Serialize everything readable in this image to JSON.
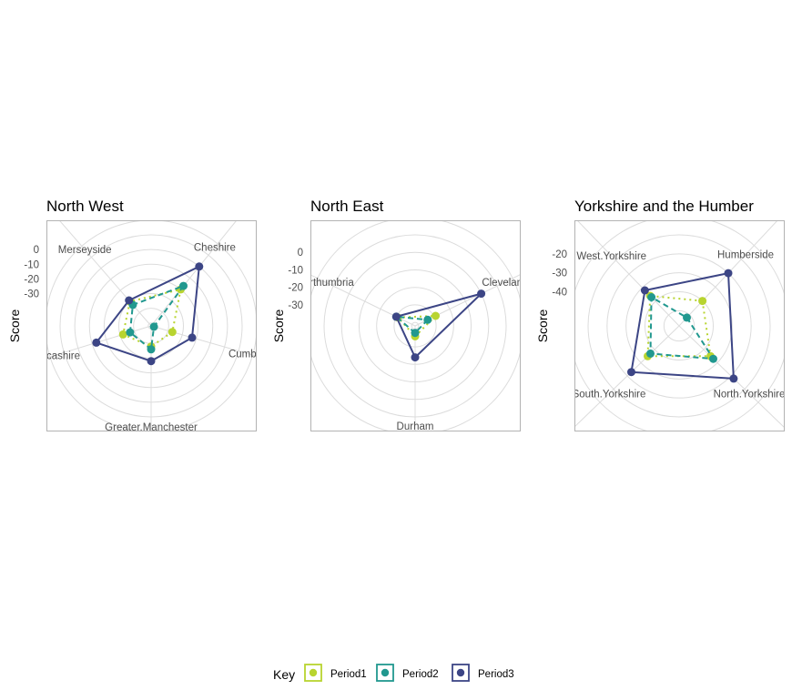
{
  "chart_data": [
    {
      "type": "radar",
      "title": "North West",
      "ylabel": "Score",
      "axes": [
        "Cheshire",
        "Cumbria",
        "Greater.Manchester",
        "Lancashire",
        "Merseyside"
      ],
      "radial_ticks": [
        "0",
        "-10",
        "-20",
        "-30"
      ],
      "series": [
        {
          "name": "Period1",
          "values": [
            -20,
            -37,
            -38,
            -32,
            -30
          ]
        },
        {
          "name": "Period2",
          "values": [
            -17,
            -50,
            -36,
            -37,
            -33
          ]
        },
        {
          "name": "Period3",
          "values": [
            0,
            -23,
            -28,
            -13,
            -29
          ]
        }
      ]
    },
    {
      "type": "radar",
      "title": "North East",
      "ylabel": "Score",
      "axes": [
        "Cleveland",
        "Durham",
        "Northumbria"
      ],
      "radial_ticks": [
        "0",
        "-10",
        "-20",
        "-30"
      ],
      "series": [
        {
          "name": "Period1",
          "values": [
            -29,
            -36,
            -31
          ]
        },
        {
          "name": "Period2",
          "values": [
            -34,
            -38,
            -30
          ]
        },
        {
          "name": "Period3",
          "values": [
            0,
            -24,
            -30
          ]
        }
      ]
    },
    {
      "type": "radar",
      "title": "Yorkshire and the Humber",
      "ylabel": "Score",
      "axes": [
        "Humberside",
        "North.Yorkshire",
        "South.Yorkshire",
        "West.Yorkshire"
      ],
      "radial_ticks": [
        "-20",
        "-30",
        "-40"
      ],
      "series": [
        {
          "name": "Period1",
          "values": [
            -40,
            -35,
            -35,
            -36
          ]
        },
        {
          "name": "Period2",
          "values": [
            -52,
            -33,
            -37,
            -37
          ]
        },
        {
          "name": "Period3",
          "values": [
            -20,
            -18,
            -23,
            -32
          ]
        }
      ]
    }
  ],
  "legend": {
    "title": "Key",
    "items": [
      "Period1",
      "Period2",
      "Period3"
    ]
  },
  "colors": {
    "Period1": "#b8d430",
    "Period2": "#21988f",
    "Period3": "#3c4585",
    "grid": "#dcdcdc",
    "panel_border": "#b3b3b3"
  }
}
